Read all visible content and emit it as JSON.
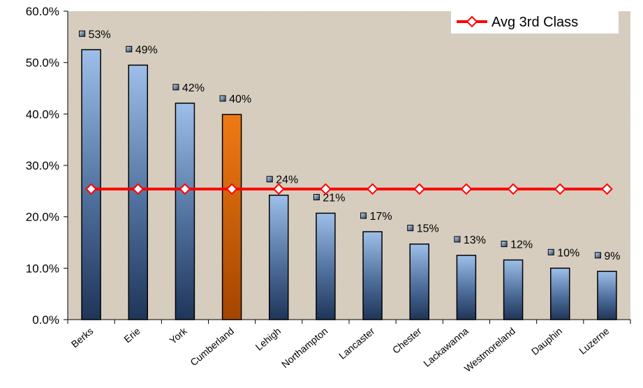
{
  "chart_data": {
    "type": "bar",
    "title": "",
    "xlabel": "",
    "ylabel": "",
    "categories": [
      "Berks",
      "Erie",
      "York",
      "Cumberland",
      "Lehigh",
      "Northampton",
      "Lancaster",
      "Chester",
      "Lackawanna",
      "Westmoreland",
      "Dauphin",
      "Luzerne"
    ],
    "series": [
      {
        "values": [
          52.5,
          49.5,
          42.1,
          39.9,
          24.2,
          20.7,
          17.1,
          14.7,
          12.5,
          11.6,
          10.0,
          9.4
        ],
        "data_labels": [
          "53%",
          "49%",
          "42%",
          "40%",
          "24%",
          "21%",
          "17%",
          "15%",
          "13%",
          "12%",
          "10%",
          "9%"
        ],
        "color": "#8fb2de",
        "highlight_category": "Cumberland",
        "highlight_color": "#e06a10"
      },
      {
        "name": "Avg 3rd Class",
        "type": "line",
        "values": [
          25.4,
          25.4,
          25.4,
          25.4,
          25.4,
          25.4,
          25.4,
          25.4,
          25.4,
          25.4,
          25.4,
          25.4
        ],
        "color": "#ff0000",
        "marker": "diamond-open"
      }
    ],
    "y_ticks": [
      "0.0%",
      "10.0%",
      "20.0%",
      "30.0%",
      "40.0%",
      "50.0%",
      "60.0%"
    ],
    "ylim": [
      0,
      60
    ],
    "grid": false,
    "legend": {
      "position": "top-right"
    },
    "plot_background": "#d9cfc0"
  }
}
